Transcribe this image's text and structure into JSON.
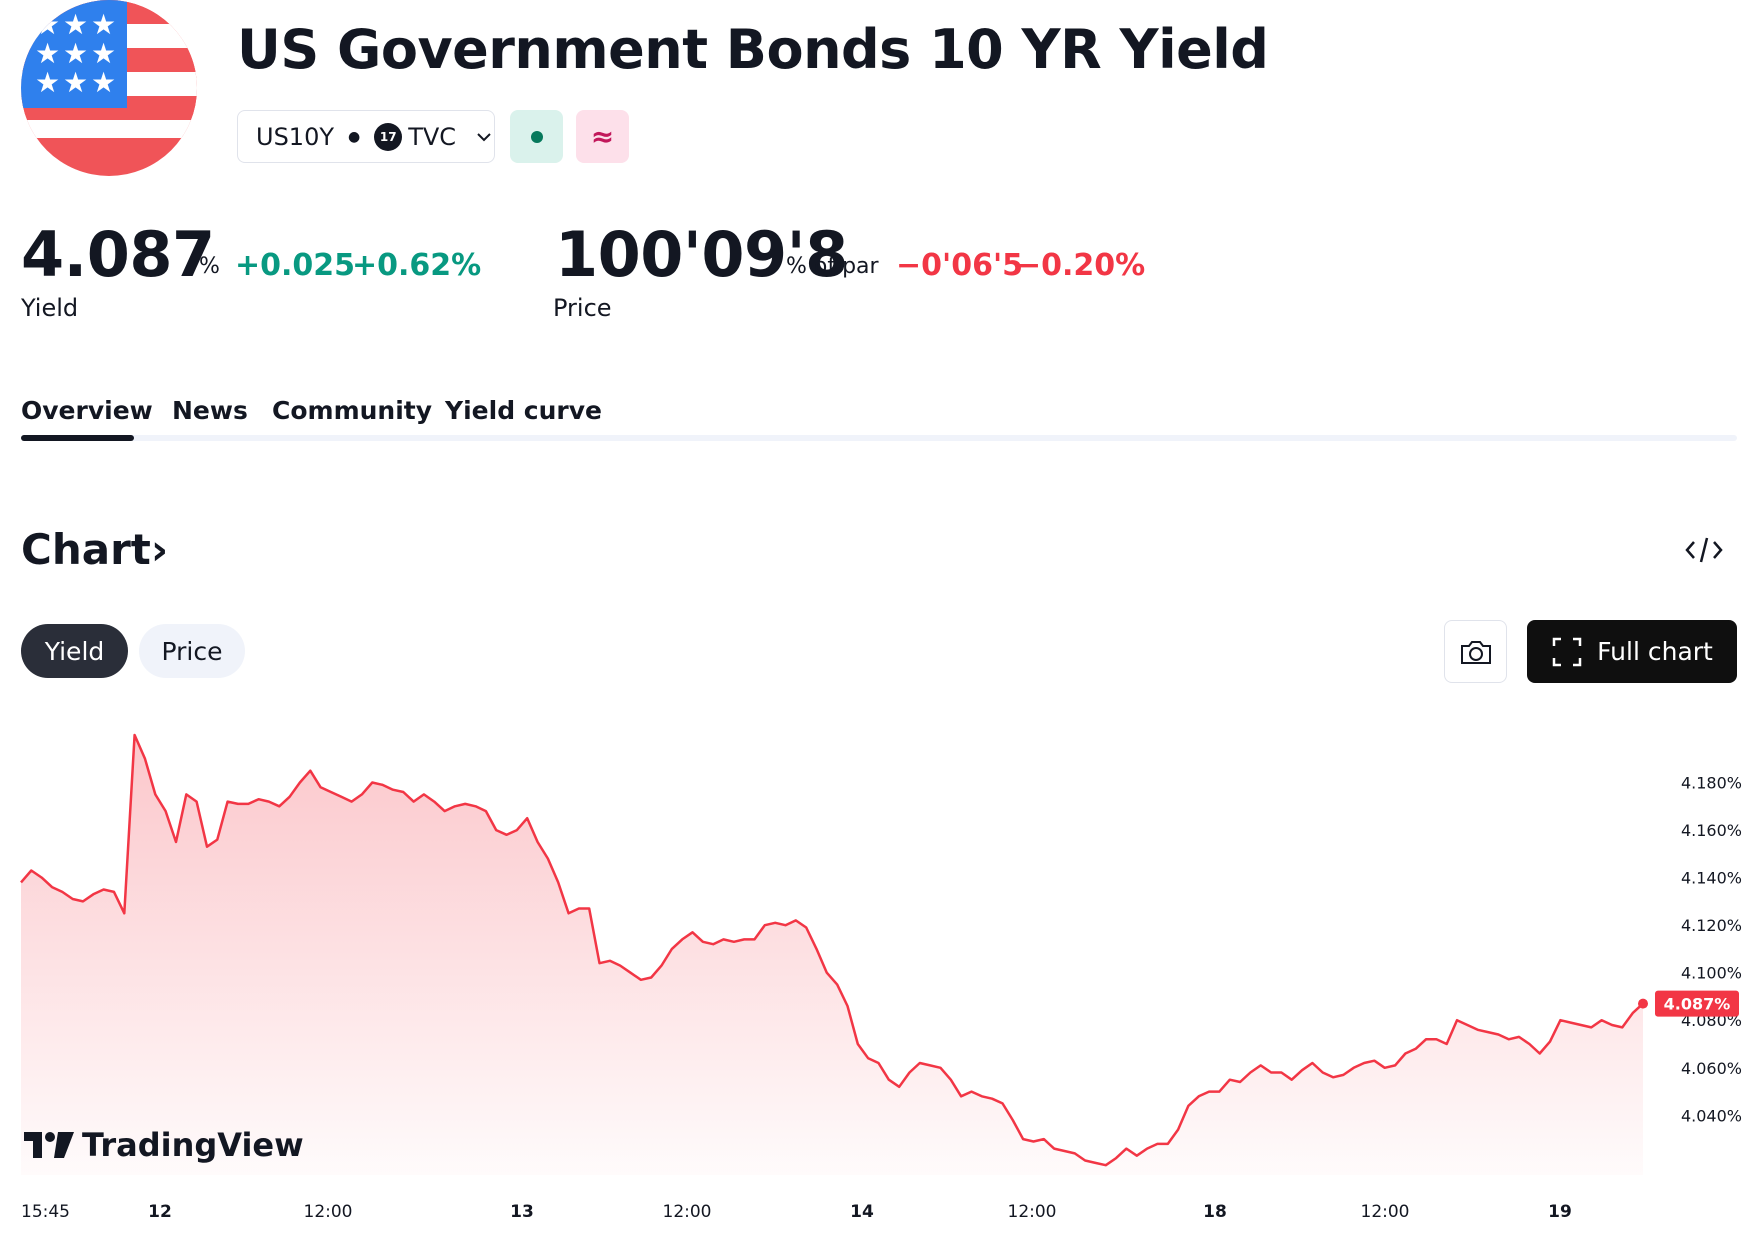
{
  "header": {
    "title": "US Government Bonds 10 YR Yield",
    "symbol": "US10Y",
    "exchange": "TVC",
    "exchange_logo": "17",
    "badge_icons": [
      "market-open-dot-icon",
      "approx-icon"
    ],
    "badge_pink_glyph": "≈"
  },
  "quote": {
    "yield": {
      "value": "4.087",
      "unit": "%",
      "change": "+0.025",
      "change_pct": "+0.62%",
      "label": "Yield"
    },
    "price": {
      "value": "100'09'8",
      "unit": "% of par",
      "change": "−0'06'5",
      "change_pct": "−0.20%",
      "label": "Price"
    }
  },
  "tabs": [
    {
      "label": "Overview",
      "active": true
    },
    {
      "label": "News"
    },
    {
      "label": "Community"
    },
    {
      "label": "Yield curve"
    }
  ],
  "chart_section": {
    "title": "Chart",
    "chevron": "›",
    "toggle": [
      "Yield",
      "Price"
    ],
    "toggle_active": "Yield",
    "full_chart_label": "Full chart",
    "watermark": "TradingView",
    "watermark_logo": "17"
  },
  "colors": {
    "up": "#089981",
    "down": "#f23645",
    "line": "#f23645",
    "text": "#131722"
  },
  "chart_data": {
    "type": "area",
    "title": "",
    "xlabel": "",
    "ylabel": "",
    "ylim": [
      4.017,
      4.2
    ],
    "y_ticks": [
      "4.040%",
      "4.060%",
      "4.080%",
      "4.100%",
      "4.120%",
      "4.140%",
      "4.160%",
      "4.180%"
    ],
    "y_tick_values": [
      4.04,
      4.06,
      4.08,
      4.1,
      4.12,
      4.14,
      4.16,
      4.18
    ],
    "x_ticks": [
      {
        "label": "15:45",
        "bold": false
      },
      {
        "label": "12",
        "bold": true
      },
      {
        "label": "12:00",
        "bold": false
      },
      {
        "label": "13",
        "bold": true
      },
      {
        "label": "12:00",
        "bold": false
      },
      {
        "label": "14",
        "bold": true
      },
      {
        "label": "12:00",
        "bold": false
      },
      {
        "label": "18",
        "bold": true
      },
      {
        "label": "12:00",
        "bold": false
      },
      {
        "label": "19",
        "bold": true
      }
    ],
    "series": [
      {
        "values": [
          4.138,
          4.143,
          4.14,
          4.136,
          4.134,
          4.131,
          4.13,
          4.133,
          4.135,
          4.134,
          4.125,
          4.2,
          4.19,
          4.175,
          4.168,
          4.155,
          4.175,
          4.172,
          4.153,
          4.156,
          4.172,
          4.171,
          4.171,
          4.173,
          4.172,
          4.17,
          4.174,
          4.18,
          4.185,
          4.178,
          4.176,
          4.174,
          4.172,
          4.175,
          4.18,
          4.179,
          4.177,
          4.176,
          4.172,
          4.175,
          4.172,
          4.168,
          4.17,
          4.171,
          4.17,
          4.168,
          4.16,
          4.158,
          4.16,
          4.165,
          4.155,
          4.148,
          4.138,
          4.125,
          4.127,
          4.127,
          4.104,
          4.105,
          4.103,
          4.1,
          4.097,
          4.098,
          4.103,
          4.11,
          4.114,
          4.117,
          4.113,
          4.112,
          4.114,
          4.113,
          4.114,
          4.114,
          4.12,
          4.121,
          4.12,
          4.122,
          4.119,
          4.11,
          4.1,
          4.095,
          4.086,
          4.07,
          4.064,
          4.062,
          4.055,
          4.052,
          4.058,
          4.062,
          4.061,
          4.06,
          4.055,
          4.048,
          4.05,
          4.048,
          4.047,
          4.045,
          4.038,
          4.03,
          4.029,
          4.03,
          4.026,
          4.025,
          4.024,
          4.021,
          4.02,
          4.019,
          4.022,
          4.026,
          4.023,
          4.026,
          4.028,
          4.028,
          4.034,
          4.044,
          4.048,
          4.05,
          4.05,
          4.055,
          4.054,
          4.058,
          4.061,
          4.058,
          4.058,
          4.055,
          4.059,
          4.062,
          4.058,
          4.056,
          4.057,
          4.06,
          4.062,
          4.063,
          4.06,
          4.061,
          4.066,
          4.068,
          4.072,
          4.072,
          4.07,
          4.08,
          4.078,
          4.076,
          4.075,
          4.074,
          4.072,
          4.073,
          4.07,
          4.066,
          4.071,
          4.08,
          4.079,
          4.078,
          4.077,
          4.08,
          4.078,
          4.077,
          4.083,
          4.087
        ]
      }
    ]
  }
}
